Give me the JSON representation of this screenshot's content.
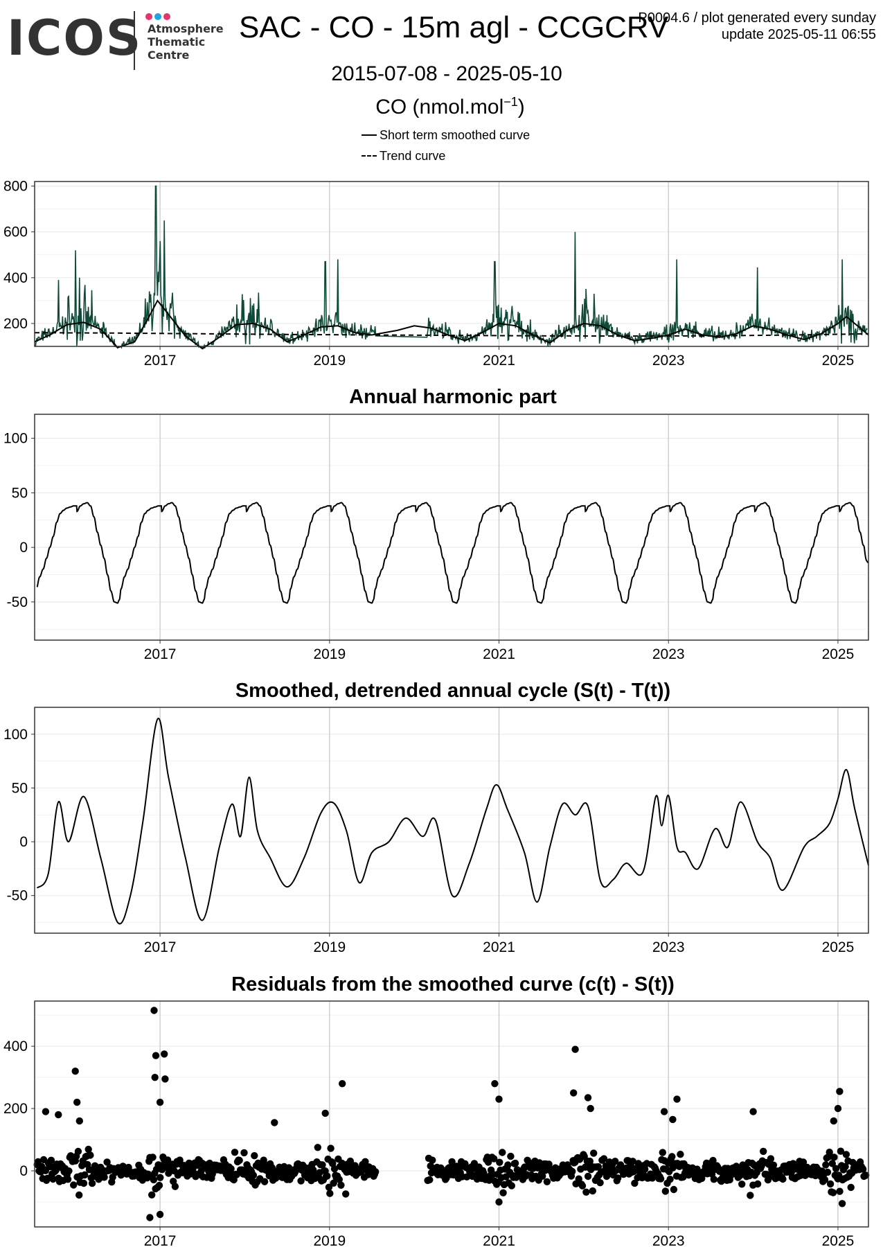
{
  "header": {
    "logo_text": "ICOS",
    "logo_sub": [
      "Atmosphere",
      "Thematic",
      "Centre"
    ],
    "title": "SAC - CO - 15m agl - CCGCRV",
    "meta_line1": "P0004.6 / plot generated every sunday",
    "meta_line2": "update  2025-05-11 06:55",
    "date_range": "2015-07-08 - 2025-05-10",
    "unit_label": "CO (nmol.mol",
    "unit_exp": "−1",
    "unit_close": ")",
    "legend": [
      {
        "label": "Short term smoothed curve",
        "style": "solid"
      },
      {
        "label": "Trend curve",
        "style": "dashed"
      }
    ]
  },
  "colors": {
    "data_series": "#0e4a38",
    "smooth_curve": "#000000",
    "grid": "#ebebeb",
    "grid_major_x": "#cccccc"
  },
  "chart_data": [
    {
      "type": "line",
      "title": "",
      "xlim": [
        2015.52,
        2025.36
      ],
      "ylim": [
        100,
        820
      ],
      "xticks": [
        2017,
        2019,
        2021,
        2023,
        2025
      ],
      "yticks": [
        200,
        400,
        600,
        800
      ],
      "series": [
        {
          "name": "Short term smoothed curve",
          "style": "solid",
          "x": [
            2015.52,
            2015.7,
            2015.9,
            2016.1,
            2016.3,
            2016.5,
            2016.7,
            2016.85,
            2016.97,
            2017.1,
            2017.3,
            2017.5,
            2017.7,
            2017.9,
            2018.1,
            2018.3,
            2018.5,
            2018.7,
            2018.9,
            2019.1,
            2019.3,
            2019.5,
            2019.8,
            2020.0,
            2020.2,
            2020.4,
            2020.6,
            2020.8,
            2021.0,
            2021.2,
            2021.4,
            2021.6,
            2021.8,
            2022.0,
            2022.2,
            2022.4,
            2022.6,
            2022.8,
            2023.0,
            2023.2,
            2023.4,
            2023.6,
            2023.8,
            2024.0,
            2024.2,
            2024.4,
            2024.6,
            2024.8,
            2025.0,
            2025.1,
            2025.36
          ],
          "y": [
            120,
            150,
            195,
            205,
            175,
            95,
            120,
            215,
            300,
            240,
            145,
            90,
            140,
            195,
            200,
            175,
            120,
            150,
            185,
            190,
            160,
            150,
            170,
            190,
            180,
            150,
            125,
            160,
            200,
            190,
            150,
            115,
            170,
            200,
            190,
            150,
            125,
            135,
            150,
            175,
            150,
            140,
            155,
            190,
            175,
            150,
            130,
            155,
            200,
            230,
            150
          ]
        },
        {
          "name": "Trend curve",
          "style": "dashed",
          "x": [
            2015.52,
            2016.5,
            2017.5,
            2018.5,
            2019.5,
            2020.5,
            2021.5,
            2022.5,
            2023.5,
            2024.5,
            2025.36
          ],
          "y": [
            160,
            158,
            155,
            152,
            150,
            148,
            146,
            145,
            146,
            150,
            155
          ]
        }
      ]
    },
    {
      "type": "line",
      "title": "Annual harmonic part",
      "xlim": [
        2015.52,
        2025.36
      ],
      "ylim": [
        -85,
        122
      ],
      "xticks": [
        2017,
        2019,
        2021,
        2023,
        2025
      ],
      "yticks": [
        -50,
        0,
        50,
        100
      ],
      "series": [
        {
          "name": "",
          "style": "solid",
          "periodic_year_profile": true,
          "phase": [
            0.0,
            0.04,
            0.08,
            0.12,
            0.16,
            0.2,
            0.24,
            0.28,
            0.32,
            0.36,
            0.4,
            0.44,
            0.48,
            0.5,
            0.52,
            0.56,
            0.6,
            0.64,
            0.68,
            0.72,
            0.76,
            0.8,
            0.84,
            0.88,
            0.92,
            0.96,
            1.0
          ],
          "value": [
            33,
            38,
            40,
            41,
            38,
            28,
            14,
            2,
            -10,
            -25,
            -40,
            -50,
            -51,
            -48,
            -38,
            -27,
            -20,
            -10,
            0,
            10,
            23,
            31,
            34,
            36,
            37,
            38,
            38
          ],
          "range": [
            2015.55,
            2025.36
          ],
          "end_value": -14
        }
      ]
    },
    {
      "type": "line",
      "title": "Smoothed, detrended annual cycle (S(t) - T(t))",
      "xlim": [
        2015.52,
        2025.36
      ],
      "ylim": [
        -85,
        125
      ],
      "xticks": [
        2017,
        2019,
        2021,
        2023,
        2025
      ],
      "yticks": [
        -50,
        0,
        50,
        100
      ],
      "series": [
        {
          "name": "",
          "style": "solid",
          "x": [
            2015.55,
            2015.68,
            2015.8,
            2015.92,
            2016.1,
            2016.3,
            2016.5,
            2016.65,
            2016.8,
            2016.97,
            2017.1,
            2017.3,
            2017.5,
            2017.7,
            2017.85,
            2017.95,
            2018.05,
            2018.15,
            2018.3,
            2018.5,
            2018.7,
            2018.9,
            2019.05,
            2019.2,
            2019.35,
            2019.5,
            2019.7,
            2019.9,
            2020.1,
            2020.25,
            2020.45,
            2020.65,
            2020.85,
            2020.97,
            2021.1,
            2021.3,
            2021.45,
            2021.6,
            2021.75,
            2021.9,
            2022.05,
            2022.2,
            2022.35,
            2022.5,
            2022.7,
            2022.85,
            2022.92,
            2023.0,
            2023.1,
            2023.2,
            2023.35,
            2023.55,
            2023.7,
            2023.85,
            2024.05,
            2024.2,
            2024.35,
            2024.6,
            2024.75,
            2024.9,
            2025.0,
            2025.1,
            2025.2,
            2025.36
          ],
          "y": [
            -43,
            -30,
            37,
            0,
            42,
            -15,
            -75,
            -50,
            20,
            114,
            60,
            -15,
            -73,
            -5,
            35,
            5,
            60,
            10,
            -15,
            -42,
            -15,
            27,
            36,
            10,
            -38,
            -10,
            0,
            22,
            5,
            20,
            -50,
            -20,
            30,
            53,
            30,
            -10,
            -56,
            -5,
            35,
            25,
            33,
            -37,
            -35,
            -20,
            -28,
            42,
            15,
            43,
            -5,
            -10,
            -25,
            12,
            -5,
            37,
            0,
            -15,
            -45,
            -5,
            5,
            17,
            40,
            67,
            30,
            -22
          ]
        }
      ]
    },
    {
      "type": "scatter",
      "title": "Residuals from the smoothed curve (c(t) - S(t))",
      "xlim": [
        2015.52,
        2025.36
      ],
      "ylim": [
        -180,
        545
      ],
      "xticks": [
        2017,
        2019,
        2021,
        2023,
        2025
      ],
      "yticks": [
        0,
        200,
        400
      ],
      "gap": [
        2019.55,
        2020.15
      ],
      "spikes": [
        {
          "x": 2015.65,
          "y": 190
        },
        {
          "x": 2015.8,
          "y": 180
        },
        {
          "x": 2016.0,
          "y": 320
        },
        {
          "x": 2016.02,
          "y": 220
        },
        {
          "x": 2016.05,
          "y": 160
        },
        {
          "x": 2016.93,
          "y": 515
        },
        {
          "x": 2016.95,
          "y": 370
        },
        {
          "x": 2016.94,
          "y": 300
        },
        {
          "x": 2017.05,
          "y": 375
        },
        {
          "x": 2017.06,
          "y": 295
        },
        {
          "x": 2017.0,
          "y": 220
        },
        {
          "x": 2018.35,
          "y": 155
        },
        {
          "x": 2019.15,
          "y": 280
        },
        {
          "x": 2018.95,
          "y": 185
        },
        {
          "x": 2020.95,
          "y": 280
        },
        {
          "x": 2021.0,
          "y": 230
        },
        {
          "x": 2021.9,
          "y": 390
        },
        {
          "x": 2021.88,
          "y": 250
        },
        {
          "x": 2022.05,
          "y": 235
        },
        {
          "x": 2022.08,
          "y": 200
        },
        {
          "x": 2023.1,
          "y": 230
        },
        {
          "x": 2022.95,
          "y": 190
        },
        {
          "x": 2023.05,
          "y": 165
        },
        {
          "x": 2024.0,
          "y": 190
        },
        {
          "x": 2025.02,
          "y": 255
        },
        {
          "x": 2025.0,
          "y": 200
        },
        {
          "x": 2024.95,
          "y": 160
        },
        {
          "x": 2016.88,
          "y": -150
        },
        {
          "x": 2017.0,
          "y": -140
        },
        {
          "x": 2025.05,
          "y": -105
        },
        {
          "x": 2021.0,
          "y": -100
        }
      ]
    }
  ]
}
